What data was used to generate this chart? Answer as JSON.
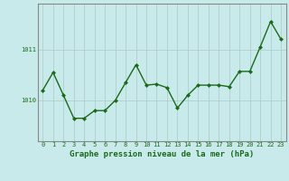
{
  "x": [
    0,
    1,
    2,
    3,
    4,
    5,
    6,
    7,
    8,
    9,
    10,
    11,
    12,
    13,
    14,
    15,
    16,
    17,
    18,
    19,
    20,
    21,
    22,
    23
  ],
  "y": [
    1010.2,
    1010.55,
    1010.1,
    1009.65,
    1009.65,
    1009.8,
    1009.8,
    1010.0,
    1010.35,
    1010.7,
    1010.3,
    1010.32,
    1010.25,
    1009.85,
    1010.1,
    1010.3,
    1010.3,
    1010.3,
    1010.27,
    1010.57,
    1010.57,
    1011.05,
    1011.55,
    1011.2
  ],
  "line_color": "#1a6b1a",
  "marker": "D",
  "marker_size": 2.0,
  "line_width": 1.0,
  "bg_color": "#c8eaea",
  "grid_color": "#aacaca",
  "xlabel": "Graphe pression niveau de la mer (hPa)",
  "xlabel_fontsize": 6.5,
  "xlabel_color": "#1a6b1a",
  "ylim": [
    1009.2,
    1011.9
  ],
  "yticks": [
    1010,
    1011
  ],
  "ytick_labels": [
    "1010",
    "1011"
  ],
  "xticks": [
    0,
    1,
    2,
    3,
    4,
    5,
    6,
    7,
    8,
    9,
    10,
    11,
    12,
    13,
    14,
    15,
    16,
    17,
    18,
    19,
    20,
    21,
    22,
    23
  ],
  "tick_fontsize": 5.0,
  "tick_color": "#1a6b1a",
  "spine_color": "#888888"
}
